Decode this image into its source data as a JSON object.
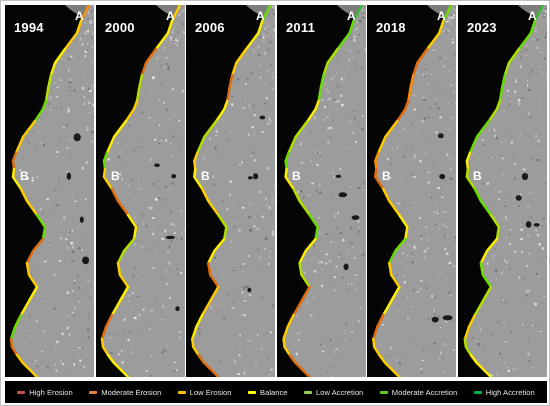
{
  "panels": [
    {
      "year": "1994",
      "point_a": "A",
      "point_b": "B",
      "shore": [
        "#ff8c00",
        "#ffcc00",
        "#ffee00",
        "#b0e000",
        "#66dd00",
        "#ffcc00",
        "#e06a10",
        "#ffee00",
        "#ffcc00",
        "#66dd00",
        "#e06a10",
        "#ffcc00",
        "#ffee00",
        "#66dd00",
        "#e06a10",
        "#ffcc00"
      ]
    },
    {
      "year": "2000",
      "point_a": "A",
      "point_b": "B",
      "shore": [
        "#ffcc00",
        "#ffee00",
        "#e06a10",
        "#b0e000",
        "#ffcc00",
        "#ffee00",
        "#66dd00",
        "#ffcc00",
        "#e06a10",
        "#ffee00",
        "#b0e000",
        "#ffcc00",
        "#ffee00",
        "#e06a10",
        "#ffcc00",
        "#ffee00"
      ]
    },
    {
      "year": "2006",
      "point_a": "A",
      "point_b": "B",
      "shore": [
        "#66dd00",
        "#ffee00",
        "#ffcc00",
        "#e06a10",
        "#ffee00",
        "#b0e000",
        "#ffcc00",
        "#ffee00",
        "#ffcc00",
        "#b0e000",
        "#ffee00",
        "#e06a10",
        "#ffcc00",
        "#ffee00",
        "#ffcc00",
        "#e06a10"
      ]
    },
    {
      "year": "2011",
      "point_a": "A",
      "point_b": "B",
      "shore": [
        "#33bb33",
        "#66dd00",
        "#b0e000",
        "#66dd00",
        "#ffee00",
        "#b0e000",
        "#66dd00",
        "#ffee00",
        "#b0e000",
        "#66dd00",
        "#ffee00",
        "#b0e000",
        "#e06a10",
        "#ffcc00",
        "#ffcc00",
        "#e06a10"
      ]
    },
    {
      "year": "2018",
      "point_a": "A",
      "point_b": "B",
      "shore": [
        "#66dd00",
        "#ffcc00",
        "#e06a10",
        "#ff8c00",
        "#e06a10",
        "#ffcc00",
        "#ff8c00",
        "#e06a10",
        "#ffcc00",
        "#ffee00",
        "#66dd00",
        "#ffcc00",
        "#ffee00",
        "#e06a10",
        "#ffcc00",
        "#ffcc00"
      ]
    },
    {
      "year": "2023",
      "point_a": "A",
      "point_b": "B",
      "shore": [
        "#33bb33",
        "#66dd00",
        "#b0e000",
        "#66dd00",
        "#b0e000",
        "#66dd00",
        "#ffee00",
        "#b0e000",
        "#66dd00",
        "#b0e000",
        "#ffee00",
        "#66dd00",
        "#b0e000",
        "#ffcc00",
        "#b0e000",
        "#ffee00"
      ]
    }
  ],
  "legend": [
    {
      "label": "High Erosion",
      "color": "#c0504d"
    },
    {
      "label": "Moderate Erosion",
      "color": "#e5803a"
    },
    {
      "label": "Low Erosion",
      "color": "#ffc000"
    },
    {
      "label": "Balance",
      "color": "#ffff00"
    },
    {
      "label": "Low Accretion",
      "color": "#92d050"
    },
    {
      "label": "Moderate Accretion",
      "color": "#5fce1f"
    },
    {
      "label": "High Accretion",
      "color": "#00b050"
    }
  ],
  "colors": {
    "sea": "#050505",
    "land": "#9c9c9c"
  }
}
